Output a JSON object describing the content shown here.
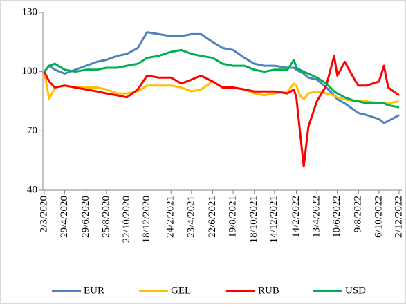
{
  "chart_data": {
    "type": "line",
    "x": [
      "2/3/2020",
      "16/3/2020",
      "1/4/2020",
      "29/4/2020",
      "29/5/2020",
      "29/6/2020",
      "29/7/2020",
      "25/8/2020",
      "25/9/2020",
      "22/10/2020",
      "22/11/2020",
      "18/12/2020",
      "20/1/2021",
      "24/2/2021",
      "25/3/2021",
      "23/4/2021",
      "20/5/2021",
      "22/6/2021",
      "20/7/2021",
      "19/8/2021",
      "20/9/2021",
      "18/10/2021",
      "15/11/2021",
      "14/12/2021",
      "20/1/2022",
      "7/2/2022",
      "14/2/2022",
      "24/2/2022",
      "7/3/2022",
      "20/3/2022",
      "13/4/2022",
      "10/5/2022",
      "1/6/2022",
      "10/6/2022",
      "1/7/2022",
      "1/8/2022",
      "9/8/2022",
      "1/9/2022",
      "6/10/2022",
      "20/10/2022",
      "1/11/2022",
      "2/12/2022"
    ],
    "series": [
      {
        "name": "EUR",
        "color": "#4f81bd",
        "values": [
          100,
          103,
          101,
          99,
          101,
          103,
          105,
          106,
          108,
          109,
          112,
          120,
          119,
          118,
          118,
          119,
          119,
          115,
          112,
          111,
          107,
          104,
          103,
          103,
          102,
          102,
          101,
          100,
          99,
          97,
          96,
          92,
          88,
          86,
          84,
          80,
          79,
          78,
          76,
          74,
          75,
          78
        ]
      },
      {
        "name": "GEL",
        "color": "#ffc000",
        "values": [
          100,
          86,
          92,
          93,
          92,
          92,
          92,
          91,
          89,
          89,
          90,
          93,
          93,
          93,
          92,
          90,
          91,
          95,
          92,
          92,
          91,
          89,
          88,
          89,
          90,
          94,
          93,
          88,
          86,
          89,
          90,
          89,
          88,
          87,
          86,
          85,
          85,
          85,
          84,
          84,
          84,
          85
        ]
      },
      {
        "name": "RUB",
        "color": "#ff0000",
        "values": [
          100,
          95,
          92,
          93,
          92,
          91,
          90,
          89,
          88,
          87,
          91,
          98,
          97,
          97,
          94,
          96,
          98,
          95,
          92,
          92,
          91,
          90,
          90,
          90,
          89,
          91,
          87,
          70,
          52,
          72,
          85,
          93,
          108,
          98,
          105,
          95,
          93,
          93,
          95,
          103,
          92,
          88
        ]
      },
      {
        "name": "USD",
        "color": "#00b050",
        "values": [
          100,
          103,
          104,
          101,
          100,
          101,
          101,
          102,
          102,
          103,
          104,
          107,
          108,
          110,
          111,
          109,
          108,
          107,
          104,
          103,
          103,
          101,
          100,
          101,
          101,
          106,
          102,
          101,
          100,
          99,
          97,
          94,
          90,
          89,
          87,
          85,
          85,
          84,
          84,
          84,
          83,
          82
        ]
      }
    ],
    "xlim": [
      "2/3/2020",
      "2/12/2022"
    ],
    "xticks": [
      "2/3/2020",
      "29/4/2020",
      "29/6/2020",
      "25/8/2020",
      "22/10/2020",
      "18/12/2020",
      "24/2/2021",
      "23/4/2021",
      "22/6/2021",
      "19/8/2021",
      "18/10/2021",
      "14/12/2021",
      "14/2/2022",
      "13/4/2022",
      "10/6/2022",
      "9/8/2022",
      "6/10/2022",
      "2/12/2022"
    ],
    "ylim": [
      40,
      130
    ],
    "yticks": [
      40,
      70,
      100,
      130
    ],
    "grid": false,
    "legend": "bottom"
  }
}
